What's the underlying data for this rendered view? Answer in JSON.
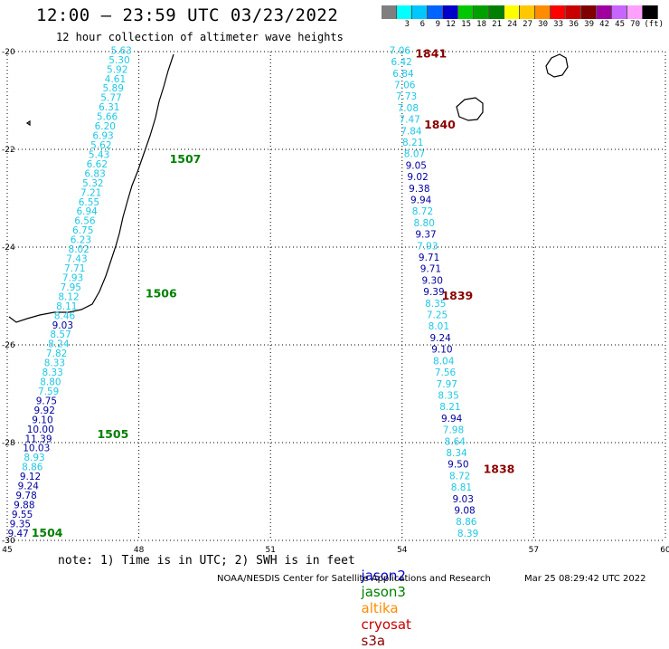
{
  "header": {
    "title": "12:00 – 23:59 UTC 03/23/2022",
    "subtitle": "12 hour collection of altimeter wave heights"
  },
  "color_scale": {
    "unit_label": "(ft)",
    "bins": [
      {
        "label": "",
        "color": "#7f7f7f"
      },
      {
        "label": "3",
        "color": "#00ffff"
      },
      {
        "label": "6",
        "color": "#00c8ff"
      },
      {
        "label": "9",
        "color": "#0064ff"
      },
      {
        "label": "12",
        "color": "#0000cd"
      },
      {
        "label": "15",
        "color": "#00c800"
      },
      {
        "label": "18",
        "color": "#00a000"
      },
      {
        "label": "21",
        "color": "#008000"
      },
      {
        "label": "24",
        "color": "#ffff00"
      },
      {
        "label": "27",
        "color": "#ffc800"
      },
      {
        "label": "30",
        "color": "#ff8c00"
      },
      {
        "label": "33",
        "color": "#ff0000"
      },
      {
        "label": "36",
        "color": "#c80000"
      },
      {
        "label": "39",
        "color": "#800000"
      },
      {
        "label": "42",
        "color": "#a000a0"
      },
      {
        "label": "45",
        "color": "#c864ff"
      },
      {
        "label": "70",
        "color": "#ffa0ff"
      },
      {
        "label": "",
        "color": "#000000"
      }
    ]
  },
  "map": {
    "lon_ticks": [
      "45",
      "48",
      "51",
      "54",
      "57",
      "60"
    ],
    "lat_ticks": [
      "-20",
      "-22",
      "-24",
      "-26",
      "-28",
      "-30"
    ],
    "colors": {
      "light": "#1ec8e6",
      "dark": "#0000a0",
      "time_green": "#008000",
      "time_red": "#8b0000",
      "coast": "#000000",
      "grid": "#000000"
    }
  },
  "tracks": [
    {
      "satellite": "jason3",
      "start": {
        "lon": 47.6,
        "lat": -19.97
      },
      "end": {
        "lon": 45.25,
        "lat": -29.85
      },
      "values": [
        {
          "v": "5.63",
          "t": "l"
        },
        {
          "v": "5.30",
          "t": "l"
        },
        {
          "v": "5.92",
          "t": "l"
        },
        {
          "v": "4.61",
          "t": "l"
        },
        {
          "v": "5.89",
          "t": "l"
        },
        {
          "v": "5.77",
          "t": "l"
        },
        {
          "v": "6.31",
          "t": "l"
        },
        {
          "v": "5.66",
          "t": "l"
        },
        {
          "v": "6.20",
          "t": "l"
        },
        {
          "v": "6.93",
          "t": "l"
        },
        {
          "v": "5.62",
          "t": "l"
        },
        {
          "v": "5.43",
          "t": "l"
        },
        {
          "v": "6.62",
          "t": "l"
        },
        {
          "v": "6.83",
          "t": "l"
        },
        {
          "v": "5.32",
          "t": "l"
        },
        {
          "v": "7.21",
          "t": "l"
        },
        {
          "v": "6.55",
          "t": "l"
        },
        {
          "v": "6.94",
          "t": "l"
        },
        {
          "v": "6.56",
          "t": "l"
        },
        {
          "v": "6.75",
          "t": "l"
        },
        {
          "v": "6.23",
          "t": "l"
        },
        {
          "v": "8.02",
          "t": "l"
        },
        {
          "v": "7.43",
          "t": "l"
        },
        {
          "v": "7.71",
          "t": "l"
        },
        {
          "v": "7.93",
          "t": "l"
        },
        {
          "v": "7.95",
          "t": "l"
        },
        {
          "v": "8.12",
          "t": "l"
        },
        {
          "v": "8.11",
          "t": "l"
        },
        {
          "v": "8.46",
          "t": "l"
        },
        {
          "v": "9.03",
          "t": "d"
        },
        {
          "v": "8.57",
          "t": "l"
        },
        {
          "v": "8.24",
          "t": "l"
        },
        {
          "v": "7.82",
          "t": "l"
        },
        {
          "v": "8.33",
          "t": "l"
        },
        {
          "v": "8.33",
          "t": "l"
        },
        {
          "v": "8.80",
          "t": "l"
        },
        {
          "v": "7.59",
          "t": "l"
        },
        {
          "v": "9.75",
          "t": "d"
        },
        {
          "v": "9.92",
          "t": "d"
        },
        {
          "v": "9.10",
          "t": "d"
        },
        {
          "v": "10.00",
          "t": "d"
        },
        {
          "v": "11.39",
          "t": "d"
        },
        {
          "v": "10.03",
          "t": "d"
        },
        {
          "v": "8.93",
          "t": "l"
        },
        {
          "v": "8.86",
          "t": "l"
        },
        {
          "v": "9.12",
          "t": "d"
        },
        {
          "v": "9.24",
          "t": "d"
        },
        {
          "v": "9.78",
          "t": "d"
        },
        {
          "v": "9.88",
          "t": "d"
        },
        {
          "v": "9.55",
          "t": "d"
        },
        {
          "v": "9.35",
          "t": "d"
        },
        {
          "v": "9.47",
          "t": "d"
        }
      ],
      "times": [
        {
          "label": "1507",
          "lon": 48.7,
          "lat": -22.2
        },
        {
          "label": "1506",
          "lon": 48.15,
          "lat": -24.95
        },
        {
          "label": "1505",
          "lon": 47.05,
          "lat": -27.83
        },
        {
          "label": "1504",
          "lon": 45.55,
          "lat": -29.85
        }
      ]
    },
    {
      "satellite": "cryosat",
      "start": {
        "lon": 53.95,
        "lat": -19.97
      },
      "end": {
        "lon": 55.5,
        "lat": -29.85
      },
      "values": [
        {
          "v": "7.06",
          "t": "l"
        },
        {
          "v": "6.42",
          "t": "l"
        },
        {
          "v": "6.84",
          "t": "l"
        },
        {
          "v": "7.06",
          "t": "l"
        },
        {
          "v": "7.73",
          "t": "l"
        },
        {
          "v": "7.08",
          "t": "l"
        },
        {
          "v": "7.47",
          "t": "l"
        },
        {
          "v": "7.84",
          "t": "l"
        },
        {
          "v": "8.21",
          "t": "l"
        },
        {
          "v": "8.07",
          "t": "l"
        },
        {
          "v": "9.05",
          "t": "d"
        },
        {
          "v": "9.02",
          "t": "d"
        },
        {
          "v": "9.38",
          "t": "d"
        },
        {
          "v": "9.94",
          "t": "d"
        },
        {
          "v": "8.72",
          "t": "l"
        },
        {
          "v": "8.80",
          "t": "l"
        },
        {
          "v": "9.37",
          "t": "d"
        },
        {
          "v": "7.93",
          "t": "l"
        },
        {
          "v": "9.71",
          "t": "d"
        },
        {
          "v": "9.71",
          "t": "d"
        },
        {
          "v": "9.30",
          "t": "d"
        },
        {
          "v": "9.39",
          "t": "d"
        },
        {
          "v": "8.35",
          "t": "l"
        },
        {
          "v": "7.25",
          "t": "l"
        },
        {
          "v": "8.01",
          "t": "l"
        },
        {
          "v": "9.24",
          "t": "d"
        },
        {
          "v": "9.10",
          "t": "d"
        },
        {
          "v": "8.04",
          "t": "l"
        },
        {
          "v": "7.56",
          "t": "l"
        },
        {
          "v": "7.97",
          "t": "l"
        },
        {
          "v": "8.35",
          "t": "l"
        },
        {
          "v": "8.21",
          "t": "l"
        },
        {
          "v": "9.94",
          "t": "d"
        },
        {
          "v": "7.98",
          "t": "l"
        },
        {
          "v": "8.64",
          "t": "l"
        },
        {
          "v": "8.34",
          "t": "l"
        },
        {
          "v": "9.50",
          "t": "d"
        },
        {
          "v": "8.72",
          "t": "l"
        },
        {
          "v": "8.81",
          "t": "l"
        },
        {
          "v": "9.03",
          "t": "d"
        },
        {
          "v": "9.08",
          "t": "d"
        },
        {
          "v": "8.86",
          "t": "l"
        },
        {
          "v": "8.39",
          "t": "l"
        }
      ],
      "times": [
        {
          "label": "1841",
          "lon": 54.3,
          "lat": -20.05
        },
        {
          "label": "1840",
          "lon": 54.5,
          "lat": -21.5
        },
        {
          "label": "1839",
          "lon": 54.9,
          "lat": -25.0
        },
        {
          "label": "1838",
          "lon": 55.85,
          "lat": -28.55
        }
      ]
    }
  ],
  "footer": {
    "note": "note: 1) Time is in UTC; 2) SWH is in feet",
    "satellites": [
      {
        "label": "jason2",
        "color": "#0000cd"
      },
      {
        "label": "jason3",
        "color": "#008000"
      },
      {
        "label": "altika",
        "color": "#ff8c00"
      },
      {
        "label": "cryosat",
        "color": "#c80000"
      },
      {
        "label": "s3a",
        "color": "#8b0000"
      }
    ],
    "credit": "NOAA/NESDIS Center for Satellite Applications and Research",
    "timestamp": "Mar 25 08:29:42 UTC 2022"
  }
}
